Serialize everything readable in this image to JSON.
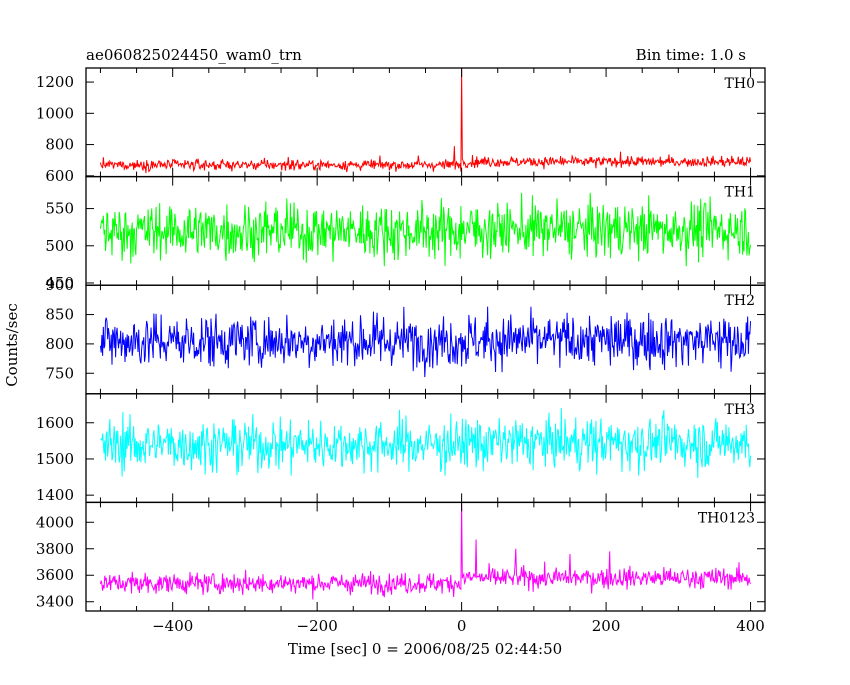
{
  "chart_data": {
    "type": "line",
    "title": "ae060825024450_wam0_trn",
    "subtitle": "Bin time: 1.0 s",
    "xlabel": "Time [sec] 0 = 2006/08/25 02:44:50",
    "ylabel": "Counts/sec",
    "xlim": [
      -520,
      420
    ],
    "x_range": [
      -500,
      400
    ],
    "bin_time_s": 1.0,
    "x_ticks": [
      -400,
      -200,
      0,
      200,
      400
    ],
    "x_tick_labels": [
      "−400",
      "−200",
      "0",
      "200",
      "400"
    ],
    "grid": false,
    "legend": "none",
    "panels": [
      {
        "name": "TH0",
        "color": "#ff0000",
        "ylim": [
          595,
          1290
        ],
        "yticks": [
          600,
          800,
          1000,
          1200
        ],
        "mean_pre": 670,
        "mean_post": 690,
        "noise": 24,
        "events": [
          {
            "x": -240,
            "y": 720
          },
          {
            "x": -60,
            "y": 730
          },
          {
            "x": -10,
            "y": 790
          },
          {
            "x": 0,
            "y": 1290
          },
          {
            "x": 220,
            "y": 755
          }
        ]
      },
      {
        "name": "TH1",
        "color": "#00ff00",
        "ylim": [
          447,
          593
        ],
        "yticks": [
          450,
          500,
          550
        ],
        "mean_pre": 520,
        "mean_post": 522,
        "noise": 26,
        "events": []
      },
      {
        "name": "TH2",
        "color": "#0000ff",
        "ylim": [
          715,
          900
        ],
        "yticks": [
          750,
          800,
          850,
          900
        ],
        "mean_pre": 805,
        "mean_post": 806,
        "noise": 32,
        "events": []
      },
      {
        "name": "TH3",
        "color": "#00ffff",
        "ylim": [
          1380,
          1680
        ],
        "yticks": [
          1400,
          1500,
          1600
        ],
        "mean_pre": 1540,
        "mean_post": 1545,
        "noise": 50,
        "events": []
      },
      {
        "name": "TH0123",
        "color": "#ff00ff",
        "ylim": [
          3330,
          4150
        ],
        "yticks": [
          3400,
          3600,
          3800,
          4000
        ],
        "mean_pre": 3540,
        "mean_post": 3580,
        "noise": 55,
        "events": [
          {
            "x": 0,
            "y": 4150
          },
          {
            "x": 20,
            "y": 3870
          },
          {
            "x": 75,
            "y": 3800
          },
          {
            "x": 150,
            "y": 3760
          },
          {
            "x": 205,
            "y": 3780
          }
        ]
      }
    ]
  }
}
